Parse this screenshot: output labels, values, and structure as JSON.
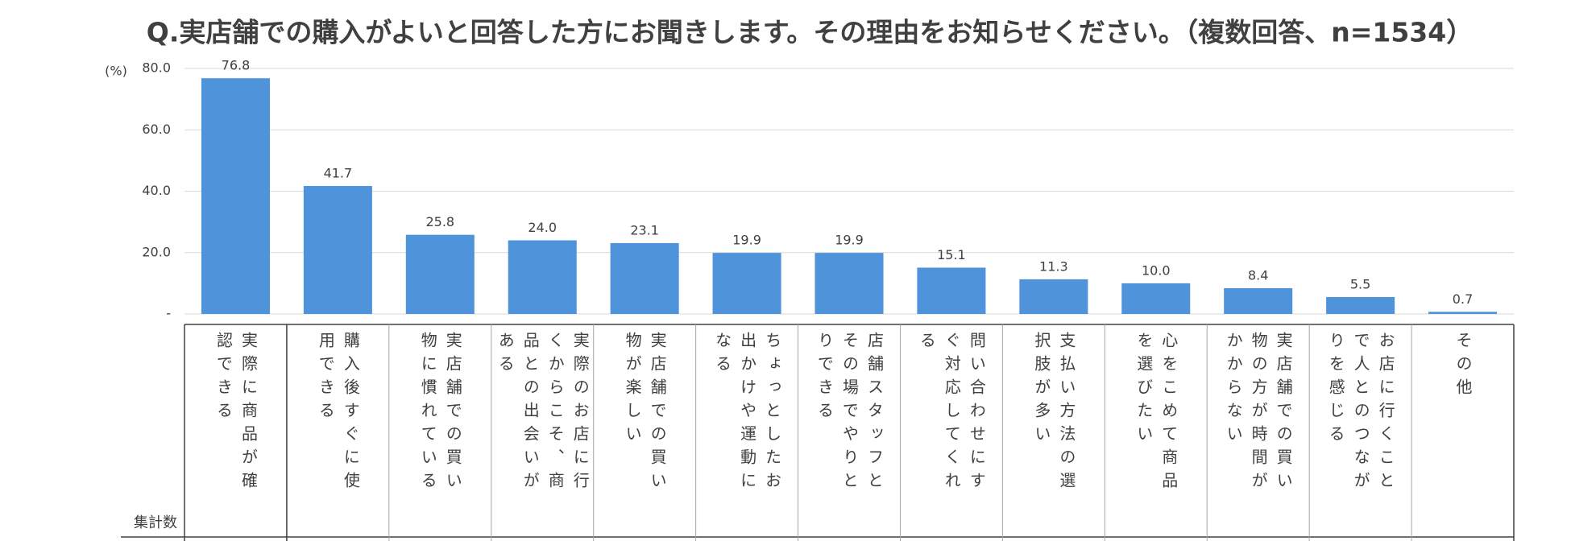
{
  "chart_data": {
    "type": "bar",
    "title": "Q.実店舗での購入がよいと回答した方にお聞きします。その理由をお知らせください。（複数回答、n=1534）",
    "y_label": "(%)",
    "row_label": "集計数",
    "categories": [
      "実際に商品が確認できる",
      "購入後すぐに使用できる",
      "実店舗での買い物に慣れている",
      "実際のお店に行くからこそ、商品との出会いがある",
      "実店舗での買い物が楽しい",
      "ちょっとしたお出かけや運動になる",
      "店舗スタッフとその場でやりとりできる",
      "問い合わせにすぐ対応してくれる",
      "支払い方法の選択肢が多い",
      "心をこめて商品を選びたい",
      "実店舗での買い物の方が時間がかからない",
      "お店に行くことで人とのつながりを感じる",
      "その他"
    ],
    "values": [
      76.8,
      41.7,
      25.8,
      24.0,
      23.1,
      19.9,
      19.9,
      15.1,
      11.3,
      10.0,
      8.4,
      5.5,
      0.7
    ],
    "value_labels": [
      "76.8",
      "41.7",
      "25.8",
      "24.0",
      "23.1",
      "19.9",
      "19.9",
      "15.1",
      "11.3",
      "10.0",
      "8.4",
      "5.5",
      "0.7"
    ],
    "color": "#4f94db",
    "ylim": [
      0,
      80
    ],
    "yticks": [
      {
        "value": 0,
        "label": "-"
      },
      {
        "value": 20,
        "label": "20.0"
      },
      {
        "value": 40,
        "label": "40.0"
      },
      {
        "value": 60,
        "label": "60.0"
      },
      {
        "value": 80,
        "label": "80.0"
      }
    ],
    "grid": true
  }
}
